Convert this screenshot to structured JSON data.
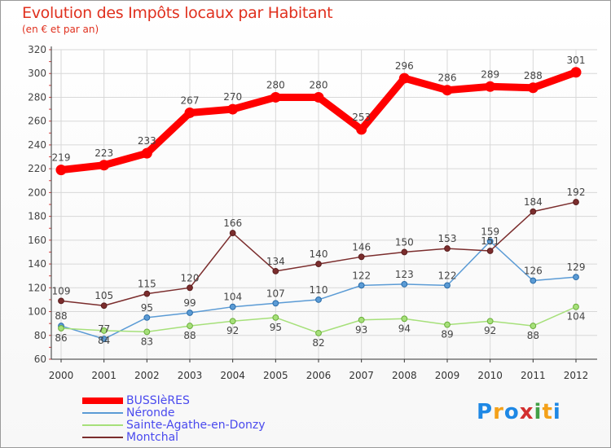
{
  "title": "Evolution des Impôts locaux par Habitant",
  "subtitle": "(en € et par an)",
  "logo": {
    "letters": [
      "P",
      "r",
      "o",
      "x",
      "i",
      "t",
      "i"
    ],
    "colors": [
      "#1e88e5",
      "#f4a11a",
      "#1e88e5",
      "#d32f2f",
      "#43a047",
      "#f4a11a",
      "#1e88e5"
    ]
  },
  "chart_data": {
    "type": "line",
    "title": "Evolution des Impôts locaux par Habitant",
    "subtitle": "(en € et par an)",
    "categories": [
      "2000",
      "2001",
      "2002",
      "2003",
      "2004",
      "2005",
      "2006",
      "2007",
      "2008",
      "2009",
      "2010",
      "2011",
      "2012"
    ],
    "ylim": [
      60,
      320
    ],
    "yticks": [
      60,
      80,
      100,
      120,
      140,
      160,
      180,
      200,
      220,
      240,
      260,
      280,
      300,
      320
    ],
    "grid": true,
    "legend_position": "bottom-left",
    "series": [
      {
        "name": "BUSSIèRES",
        "color": "#ff0000",
        "values": [
          219,
          223,
          233,
          267,
          270,
          280,
          280,
          253,
          296,
          286,
          289,
          288,
          301
        ],
        "labels": [
          "219",
          "223",
          "233",
          "267",
          "270",
          "280",
          "280",
          "253",
          "296",
          "286",
          "289",
          "288",
          "301"
        ],
        "style": "thick"
      },
      {
        "name": "Néronde",
        "color": "#5b9bd5",
        "values": [
          88,
          77,
          95,
          99,
          104,
          107,
          110,
          122,
          123,
          122,
          159,
          126,
          129
        ],
        "labels": [
          "88",
          "77",
          "95",
          "99",
          "104",
          "107",
          "110",
          "122",
          "123",
          "122",
          "159",
          "126",
          "129"
        ],
        "style": "thin"
      },
      {
        "name": "Sainte-Agathe-en-Donzy",
        "color": "#a6e07a",
        "values": [
          86,
          84,
          83,
          88,
          92,
          95,
          82,
          93,
          94,
          89,
          92,
          88,
          104
        ],
        "labels": [
          "86",
          "84",
          "83",
          "88",
          "92",
          "95",
          "82",
          "93",
          "94",
          "89",
          "92",
          "88",
          "104"
        ],
        "style": "thin"
      },
      {
        "name": "Montchal",
        "color": "#7b2d2d",
        "values": [
          109,
          105,
          115,
          120,
          166,
          134,
          140,
          146,
          150,
          153,
          151,
          184,
          192
        ],
        "labels": [
          "109",
          "105",
          "115",
          "120",
          "166",
          "134",
          "140",
          "146",
          "150",
          "153",
          "151",
          "184",
          "192"
        ],
        "style": "thin"
      }
    ]
  }
}
